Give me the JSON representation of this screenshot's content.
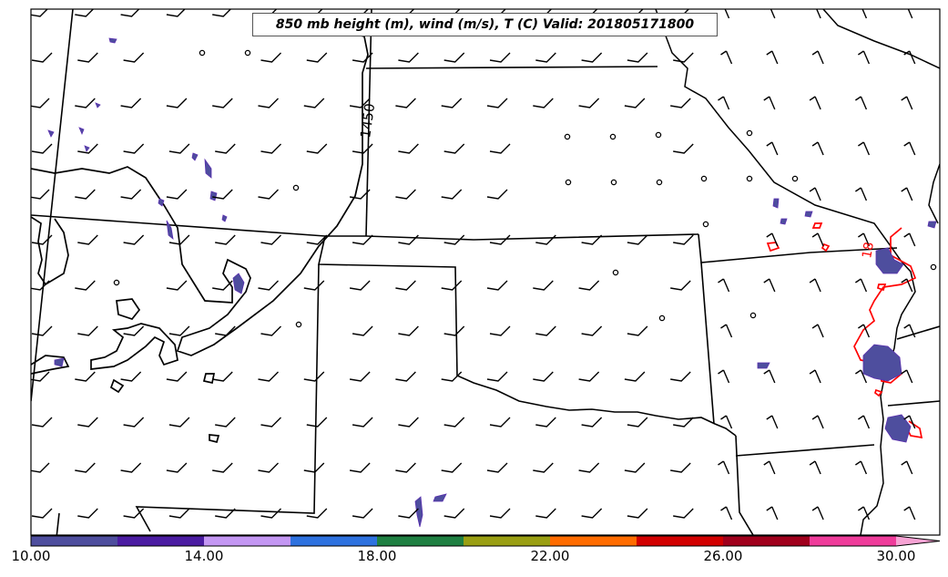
{
  "title": "850 mb height (m), wind (m/s), T (C) Valid: 201805171800",
  "contour_labels": {
    "height": "1450",
    "temperature": "18"
  },
  "colorbar": {
    "tick_labels": [
      "10.00",
      "14.00",
      "18.00",
      "22.00",
      "26.00",
      "30.00"
    ],
    "colors": [
      "#4e4e9e",
      "#4b1ca2",
      "#c497f3",
      "#2e72df",
      "#1f8042",
      "#9a9f13",
      "#ff6c00",
      "#d20000",
      "#a0001c",
      "#ef3c9b"
    ],
    "extend_color": "#f7a3d4"
  },
  "colors": {
    "height_contour": "#000000",
    "temperature_contour": "#ff0000",
    "shade": "#4e4e9e",
    "shade_purple": "#5a2fb0"
  },
  "icons": {
    "wind": "wind-barb-icon",
    "calm": "calm-circle-icon"
  }
}
